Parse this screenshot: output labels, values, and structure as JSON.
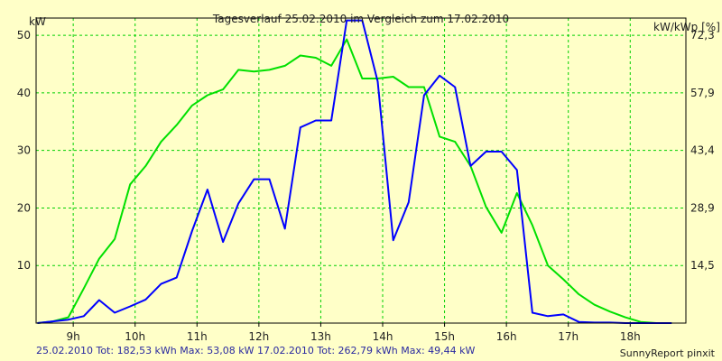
{
  "chart_data": {
    "type": "line",
    "title": "Tagesverlauf 25.02.2010 im Vergleich zum 17.02.2010",
    "ylabel_left": "kW",
    "ylabel_right": "kW/kWp [%]",
    "ylim": [
      0,
      53
    ],
    "grid": true,
    "x_tick_labels": [
      "9h",
      "10h",
      "11h",
      "12h",
      "13h",
      "14h",
      "15h",
      "16h",
      "17h",
      "18h"
    ],
    "y_ticks_left": [
      10,
      20,
      30,
      40,
      50
    ],
    "y_ticks_right_labels": [
      "14,5",
      "28,9",
      "43,4",
      "57,9",
      "72,3"
    ],
    "series": [
      {
        "name": "25.02.2010",
        "color": "#0000ff",
        "x": [
          8.42,
          8.67,
          8.92,
          9.17,
          9.42,
          9.67,
          9.92,
          10.17,
          10.42,
          10.67,
          10.92,
          11.17,
          11.42,
          11.67,
          11.92,
          12.17,
          12.42,
          12.67,
          12.92,
          13.17,
          13.42,
          13.67,
          13.92,
          14.17,
          14.42,
          14.67,
          14.92,
          15.17,
          15.42,
          15.67,
          15.92,
          16.17,
          16.42,
          16.67,
          16.92,
          17.17,
          17.42,
          17.67,
          17.92,
          18.17,
          18.42,
          18.67
        ],
        "y": [
          0,
          0.3,
          0.6,
          1.2,
          4.0,
          1.8,
          2.9,
          4.1,
          6.8,
          7.9,
          16.0,
          23.2,
          14.1,
          20.8,
          25.0,
          25.0,
          16.4,
          34.0,
          35.2,
          35.2,
          52.6,
          52.6,
          42.0,
          14.4,
          21.0,
          39.6,
          43.0,
          41.0,
          27.3,
          29.8,
          29.8,
          26.6,
          1.8,
          1.2,
          1.5,
          0.2,
          0.1,
          0.1,
          0,
          0,
          0,
          0
        ]
      },
      {
        "name": "17.02.2010",
        "color": "#00e000",
        "x": [
          8.42,
          8.67,
          8.92,
          9.17,
          9.42,
          9.67,
          9.92,
          10.17,
          10.42,
          10.67,
          10.92,
          11.17,
          11.42,
          11.67,
          11.92,
          12.17,
          12.42,
          12.67,
          12.92,
          13.17,
          13.42,
          13.67,
          13.92,
          14.17,
          14.42,
          14.67,
          14.92,
          15.17,
          15.42,
          15.67,
          15.92,
          16.17,
          16.42,
          16.67,
          16.92,
          17.17,
          17.42,
          17.67,
          17.92,
          18.17,
          18.42,
          18.67
        ],
        "y": [
          0,
          0.3,
          1.0,
          6.0,
          11.2,
          14.6,
          24.1,
          27.3,
          31.5,
          34.4,
          37.8,
          39.6,
          40.6,
          44.0,
          43.7,
          44.0,
          44.7,
          46.5,
          46.1,
          44.7,
          49.3,
          42.5,
          42.5,
          42.8,
          41.0,
          41.0,
          32.4,
          31.5,
          27.3,
          20.2,
          15.7,
          22.6,
          17.0,
          10.0,
          7.6,
          5.0,
          3.2,
          2.0,
          1.0,
          0.2,
          0,
          0
        ]
      }
    ]
  },
  "footer": {
    "legend_left": "25.02.2010 Tot: 182,53 kWh Max: 53,08 kW 17.02.2010 Tot: 262,79 kWh Max: 49,44 kW",
    "credit": "SunnyReport pinxit"
  }
}
